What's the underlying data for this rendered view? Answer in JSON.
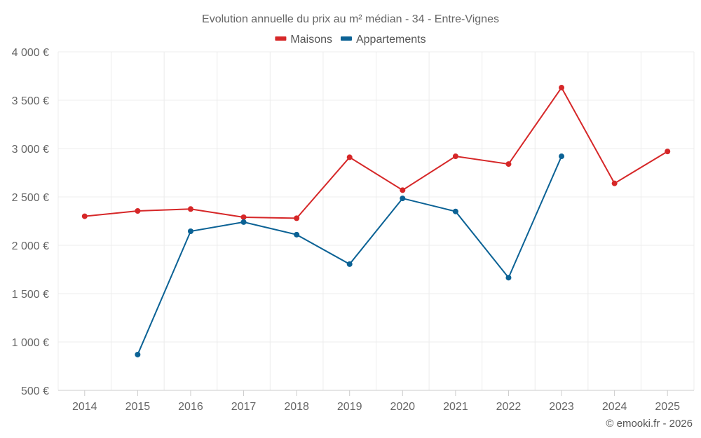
{
  "chart_data": {
    "type": "line",
    "title": "Evolution annuelle du prix au m² médian - 34 - Entre-Vignes",
    "categories": [
      "2014",
      "2015",
      "2016",
      "2017",
      "2018",
      "2019",
      "2020",
      "2021",
      "2022",
      "2023",
      "2024",
      "2025"
    ],
    "ylim": [
      500,
      4000
    ],
    "yticks": [
      500,
      1000,
      1500,
      2000,
      2500,
      3000,
      3500,
      4000
    ],
    "ytick_labels": [
      "500 €",
      "1 000 €",
      "1 500 €",
      "2 000 €",
      "2 500 €",
      "3 000 €",
      "3 500 €",
      "4 000 €"
    ],
    "legend_position": "top-center",
    "grid": true,
    "series": [
      {
        "name": "Maisons",
        "color": "#d62728",
        "values": [
          2300,
          2355,
          2375,
          2290,
          2280,
          2910,
          2570,
          2920,
          2840,
          3630,
          2640,
          2970
        ]
      },
      {
        "name": "Appartements",
        "color": "#0b6295",
        "values": [
          null,
          870,
          2145,
          2240,
          2110,
          1805,
          2485,
          2350,
          1665,
          2920,
          null,
          null
        ]
      }
    ],
    "credit": "© emooki.fr - 2026"
  }
}
